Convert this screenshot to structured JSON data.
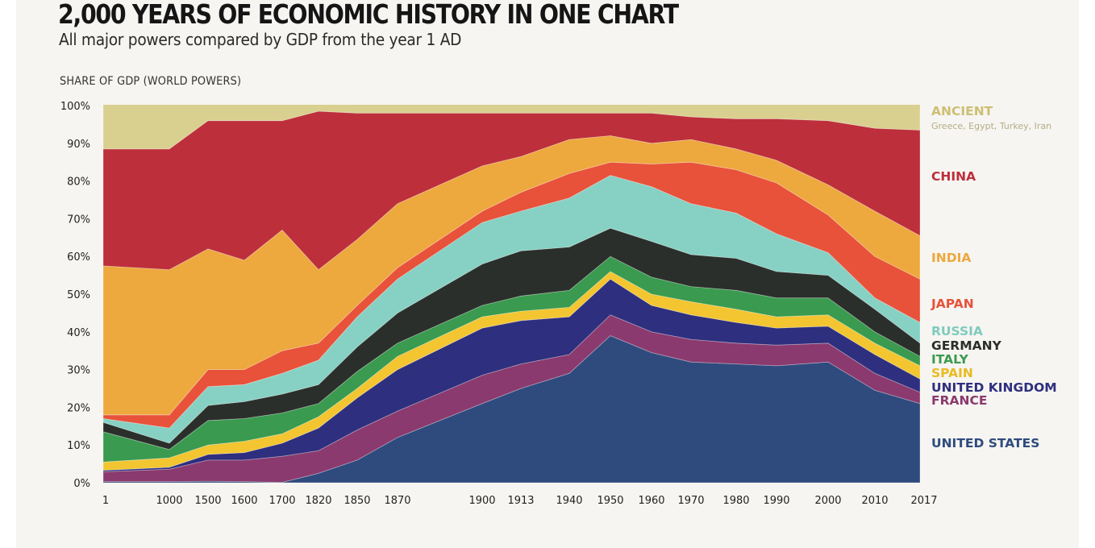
{
  "header": {
    "title": "2,000 YEARS OF ECONOMIC HISTORY IN ONE CHART",
    "subtitle": "All major powers compared by GDP from the year 1 AD",
    "axis_title": "SHARE OF GDP (WORLD POWERS)"
  },
  "chart_data": {
    "type": "area",
    "stacked": true,
    "title": "2,000 YEARS OF ECONOMIC HISTORY IN ONE CHART",
    "subtitle": "All major powers compared by GDP from the year 1 AD",
    "xlabel": "",
    "ylabel": "SHARE OF GDP (WORLD POWERS)",
    "ylim": [
      0,
      100
    ],
    "y_ticks": [
      "0%",
      "10%",
      "20%",
      "30%",
      "40%",
      "50%",
      "60%",
      "70%",
      "80%",
      "90%",
      "100%"
    ],
    "grid": false,
    "legend_position": "right",
    "x": [
      "1",
      "1000",
      "1500",
      "1600",
      "1700",
      "1820",
      "1850",
      "1870",
      "1900",
      "1913",
      "1940",
      "1950",
      "1960",
      "1970",
      "1980",
      "1990",
      "2000",
      "2010",
      "2017"
    ],
    "series": [
      {
        "name": "UNITED STATES",
        "color": "#2f4b7e",
        "values": [
          0.3,
          0.3,
          0.4,
          0.3,
          0.1,
          2.5,
          6,
          12,
          21,
          25,
          29,
          39,
          34.5,
          32,
          31.5,
          31,
          32,
          24.5,
          21
        ]
      },
      {
        "name": "FRANCE",
        "color": "#8a3a6e",
        "values": [
          2.6,
          3.3,
          5.6,
          5.7,
          6.9,
          6,
          8,
          7,
          7.5,
          6.5,
          5,
          5.5,
          5.5,
          6,
          5.5,
          5.5,
          5,
          4.5,
          3
        ]
      },
      {
        "name": "UNITED KINGDOM",
        "color": "#2e2f7e",
        "values": [
          0.4,
          0.5,
          1.5,
          2,
          3.5,
          6,
          8.5,
          11,
          12.5,
          11.5,
          10,
          9.5,
          7,
          6.5,
          5.5,
          4.5,
          4.5,
          5,
          3.5
        ]
      },
      {
        "name": "SPAIN",
        "color": "#f2c531",
        "values": [
          2.2,
          2.5,
          2.5,
          3,
          2.5,
          3,
          2.5,
          3.5,
          3,
          2.5,
          2.5,
          2,
          3,
          3.5,
          3.5,
          3,
          3,
          3,
          3.5
        ]
      },
      {
        "name": "ITALY",
        "color": "#3a9a4f",
        "values": [
          8,
          2.2,
          6.5,
          6,
          5.5,
          3.5,
          4.5,
          3.5,
          3,
          4,
          4.5,
          4,
          4.5,
          4,
          5,
          5,
          4.5,
          3,
          2.5
        ]
      },
      {
        "name": "GERMANY",
        "color": "#2b2f2b",
        "values": [
          2.5,
          1.7,
          4,
          4.5,
          5,
          5,
          6.5,
          8,
          11,
          12,
          11.5,
          7.5,
          9.5,
          8.5,
          8.5,
          7,
          6,
          6,
          3.5
        ]
      },
      {
        "name": "RUSSIA",
        "color": "#86d1c3",
        "values": [
          1,
          4,
          5,
          4.5,
          5.5,
          6.5,
          8,
          9,
          11,
          10.5,
          13,
          14,
          14.5,
          13.5,
          12,
          10,
          6,
          3,
          5.5
        ]
      },
      {
        "name": "JAPAN",
        "color": "#e8523a",
        "values": [
          1,
          3.5,
          4.5,
          4,
          6,
          4.5,
          3,
          3,
          3,
          5,
          6.5,
          3.5,
          6,
          11,
          11.5,
          13.5,
          10,
          11,
          11.5
        ]
      },
      {
        "name": "INDIA",
        "color": "#eda83e",
        "values": [
          39.5,
          38.5,
          32,
          29,
          32,
          19.5,
          17.5,
          17,
          12,
          9.5,
          9,
          7,
          5.5,
          6,
          5.5,
          6,
          8,
          12,
          11.5
        ]
      },
      {
        "name": "CHINA",
        "color": "#bd2f3b",
        "values": [
          31,
          32,
          34,
          37,
          29,
          42,
          33.5,
          24,
          14,
          11.5,
          7,
          6,
          8,
          6,
          8,
          11,
          17,
          22,
          28
        ]
      },
      {
        "name": "ANCIENT",
        "color": "#d9d08f",
        "values": [
          11.5,
          11.5,
          4,
          4,
          4,
          1.5,
          2,
          2,
          2,
          2,
          2,
          2,
          2,
          3,
          3.5,
          3.5,
          4,
          6,
          6.5
        ]
      }
    ]
  },
  "legend": [
    {
      "label": "ANCIENT",
      "sub": "Greece, Egypt, Turkey, Iran",
      "color": "#cdbf73",
      "sub_color": "#b5ad86"
    },
    {
      "label": "CHINA",
      "color": "#bd2f3b"
    },
    {
      "label": "INDIA",
      "color": "#eda83e"
    },
    {
      "label": "JAPAN",
      "color": "#e8523a"
    },
    {
      "label": "RUSSIA",
      "color": "#7fcbbd"
    },
    {
      "label": "GERMANY",
      "color": "#2b2f2b"
    },
    {
      "label": "ITALY",
      "color": "#3a9a4f"
    },
    {
      "label": "SPAIN",
      "color": "#e8bb22"
    },
    {
      "label": "UNITED KINGDOM",
      "color": "#2e2f7e"
    },
    {
      "label": "FRANCE",
      "color": "#8a3a6e"
    },
    {
      "label": "UNITED STATES",
      "color": "#2f4b7e"
    }
  ]
}
